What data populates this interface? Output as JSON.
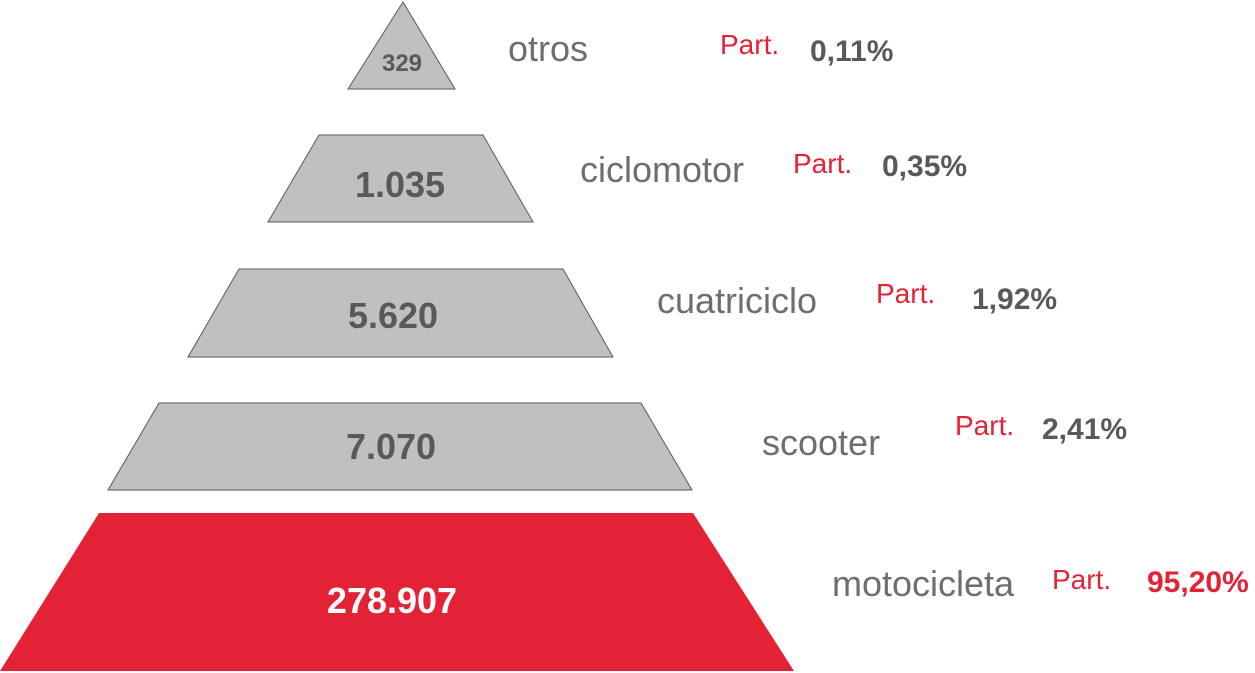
{
  "colors": {
    "tier_fill": "#c1c0bf",
    "tier_stroke": "#58595b",
    "highlight_fill": "#e32236",
    "value_text": "#58595b",
    "highlight_value_text": "#ffffff",
    "category_text": "#6d6e71",
    "part_text": "#e32236",
    "pct_text": "#58595b",
    "highlight_pct_text": "#e32236"
  },
  "part_label": "Part.",
  "tiers": [
    {
      "value": "329",
      "category": "otros",
      "share": "0,11%",
      "highlight": false
    },
    {
      "value": "1.035",
      "category": "ciclomotor",
      "share": "0,35%",
      "highlight": false
    },
    {
      "value": "5.620",
      "category": "cuatriciclo",
      "share": "1,92%",
      "highlight": false
    },
    {
      "value": "7.070",
      "category": "scooter",
      "share": "2,41%",
      "highlight": false
    },
    {
      "value": "278.907",
      "category": "motocicleta",
      "share": "95,20%",
      "highlight": true
    }
  ]
}
